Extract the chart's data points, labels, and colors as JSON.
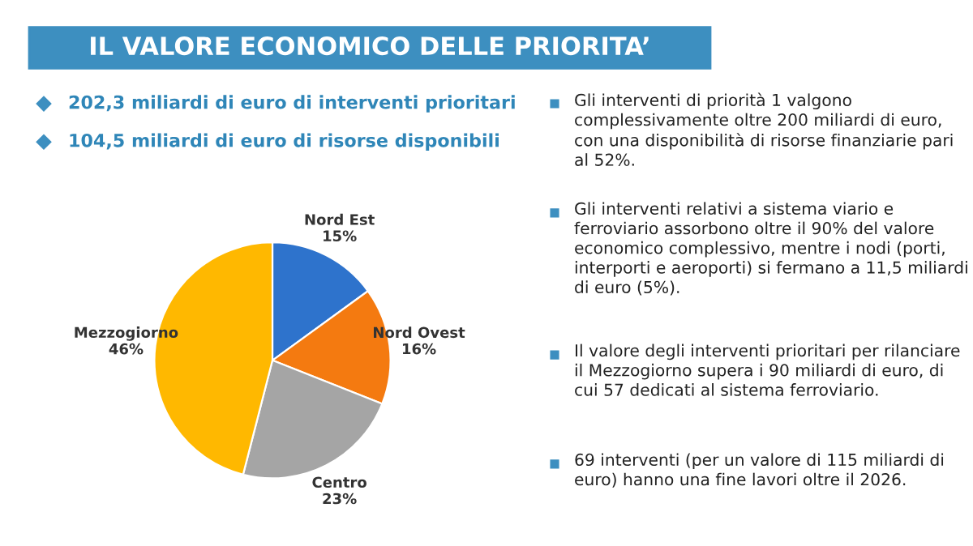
{
  "chart_data": {
    "type": "pie",
    "title": "IL VALORE ECONOMICO DELLE PRIORITA’",
    "categories": [
      "Nord Est",
      "Nord Ovest",
      "Centro",
      "Mezzogiorno"
    ],
    "values": [
      15,
      16,
      23,
      46
    ],
    "colors": [
      "#2e73cc",
      "#f47a10",
      "#a5a5a5",
      "#ffb800"
    ],
    "value_labels": [
      "15%",
      "16%",
      "23%",
      "46%"
    ],
    "annotations": [
      "202,3 miliardi di euro di interventi prioritari",
      "104,5 miliardi di euro di risorse disponibili",
      "Gli interventi di priorità 1 valgono complessivamente oltre 200 miliardi di euro, con una disponibilità di risorse finanziarie pari al 52%.",
      "Gli interventi relativi a sistema viario e ferroviario assorbono oltre il 90% del valore economico complessivo, mentre i nodi (porti, interporti e aeroporti) si fermano a 11,5 miliardi di euro (5%).",
      "Il valore degli interventi prioritari per rilanciare il Mezzogiorno supera i 90 miliardi di euro, di cui 57 dedicati al sistema ferroviario.",
      "69 interventi (per un valore di 115 miliardi di euro) hanno una fine lavori oltre il 2026."
    ]
  }
}
